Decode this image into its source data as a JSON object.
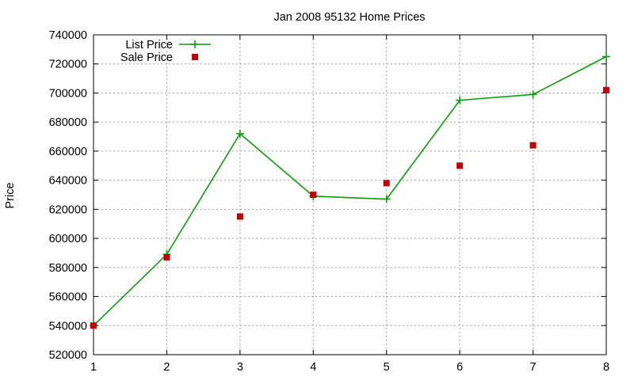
{
  "chart_data": {
    "type": "line",
    "title": "Jan 2008 95132 Home Prices",
    "xlabel": "",
    "ylabel": "Price",
    "x": [
      1,
      2,
      3,
      4,
      5,
      6,
      7,
      8
    ],
    "xlim": [
      1,
      8
    ],
    "ylim": [
      520000,
      740000
    ],
    "xticks": [
      1,
      2,
      3,
      4,
      5,
      6,
      7,
      8
    ],
    "yticks": [
      520000,
      540000,
      560000,
      580000,
      600000,
      620000,
      640000,
      660000,
      680000,
      700000,
      720000,
      740000
    ],
    "grid": true,
    "legend": "top-left",
    "series": [
      {
        "name": "List Price",
        "style": "linespoints",
        "marker": "plus",
        "color": "#109c10",
        "values": [
          540000,
          589000,
          672000,
          629000,
          627000,
          695000,
          699000,
          725000
        ]
      },
      {
        "name": "Sale Price",
        "style": "points",
        "marker": "square",
        "color": "#c00000",
        "values": [
          540000,
          587000,
          615000,
          630000,
          638000,
          650000,
          664000,
          702000
        ]
      }
    ]
  }
}
